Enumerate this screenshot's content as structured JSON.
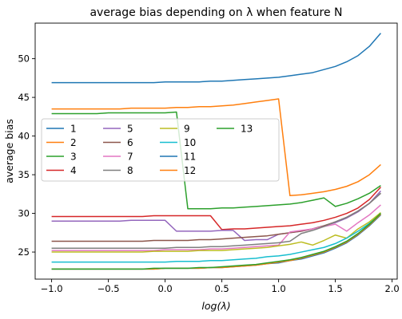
{
  "chart_data": {
    "type": "line",
    "title": "average bias depending on λ when feature N",
    "xlabel": "log(λ)",
    "ylabel": "average bias",
    "xlim": [
      -1.145,
      2.045
    ],
    "ylim": [
      21.5,
      54.6
    ],
    "xticks": [
      -1.0,
      -0.5,
      0.0,
      0.5,
      1.0,
      1.5,
      2.0
    ],
    "xtick_labels": [
      "−1.0",
      "−0.5",
      "0.0",
      "0.5",
      "1.0",
      "1.5",
      "2.0"
    ],
    "yticks": [
      25,
      30,
      35,
      40,
      45,
      50
    ],
    "ytick_labels": [
      "25",
      "30",
      "35",
      "40",
      "45",
      "50"
    ],
    "grid": false,
    "legend": {
      "placement": "center-left",
      "columns": 4
    },
    "x": [
      -1.0,
      -0.9,
      -0.8,
      -0.7,
      -0.6,
      -0.5,
      -0.4,
      -0.3,
      -0.2,
      -0.1,
      0.0,
      0.1,
      0.2,
      0.3,
      0.4,
      0.5,
      0.6,
      0.7,
      0.8,
      0.9,
      1.0,
      1.1,
      1.2,
      1.3,
      1.4,
      1.5,
      1.6,
      1.7,
      1.8,
      1.9
    ],
    "series": [
      {
        "name": "1",
        "color": "#1f77b4",
        "values": [
          46.9,
          46.9,
          46.9,
          46.9,
          46.9,
          46.9,
          46.9,
          46.9,
          46.9,
          46.9,
          47.0,
          47.0,
          47.0,
          47.0,
          47.1,
          47.1,
          47.2,
          47.3,
          47.4,
          47.5,
          47.6,
          47.8,
          48.0,
          48.2,
          48.6,
          49.0,
          49.6,
          50.4,
          51.6,
          53.3
        ]
      },
      {
        "name": "2",
        "color": "#ff7f0e",
        "values": [
          43.5,
          43.5,
          43.5,
          43.5,
          43.5,
          43.5,
          43.5,
          43.6,
          43.6,
          43.6,
          43.6,
          43.7,
          43.7,
          43.8,
          43.8,
          43.9,
          44.0,
          44.2,
          44.4,
          44.6,
          44.8,
          32.3,
          32.4,
          32.6,
          32.8,
          33.1,
          33.5,
          34.1,
          35.0,
          36.3
        ]
      },
      {
        "name": "3",
        "color": "#2ca02c",
        "values": [
          42.9,
          42.9,
          42.9,
          42.9,
          42.9,
          43.0,
          43.0,
          43.0,
          43.0,
          43.0,
          43.0,
          43.1,
          30.6,
          30.6,
          30.6,
          30.7,
          30.7,
          30.8,
          30.9,
          31.0,
          31.1,
          31.2,
          31.4,
          31.7,
          32.0,
          30.9,
          31.3,
          31.9,
          32.6,
          33.6
        ]
      },
      {
        "name": "4",
        "color": "#d62728",
        "values": [
          29.6,
          29.6,
          29.6,
          29.6,
          29.6,
          29.6,
          29.6,
          29.6,
          29.6,
          29.7,
          29.7,
          29.7,
          29.7,
          29.7,
          29.7,
          27.9,
          28.0,
          28.0,
          28.1,
          28.2,
          28.3,
          28.4,
          28.6,
          28.8,
          29.1,
          29.5,
          30.0,
          30.7,
          31.8,
          33.4
        ]
      },
      {
        "name": "5",
        "color": "#9467bd",
        "values": [
          29.0,
          29.0,
          29.0,
          29.0,
          29.0,
          29.0,
          29.0,
          29.1,
          29.1,
          29.1,
          29.1,
          27.7,
          27.7,
          27.7,
          27.7,
          27.8,
          27.8,
          26.5,
          26.6,
          26.6,
          27.3,
          27.5,
          27.7,
          28.0,
          28.4,
          28.8,
          29.4,
          30.2,
          31.3,
          32.9
        ]
      },
      {
        "name": "6",
        "color": "#8c564b",
        "values": [
          26.4,
          26.4,
          26.4,
          26.4,
          26.4,
          26.4,
          26.4,
          26.4,
          26.4,
          26.5,
          26.5,
          26.5,
          26.5,
          26.6,
          26.6,
          26.7,
          26.8,
          26.9,
          27.0,
          27.1,
          27.3,
          27.5,
          27.7,
          28.0,
          28.4,
          28.9,
          29.5,
          30.3,
          31.3,
          32.6
        ]
      },
      {
        "name": "7",
        "color": "#e377c2",
        "values": [
          25.2,
          25.2,
          25.2,
          25.2,
          25.2,
          25.2,
          25.2,
          25.2,
          25.2,
          25.2,
          25.3,
          25.3,
          25.3,
          25.3,
          25.4,
          25.4,
          25.5,
          25.6,
          25.7,
          25.8,
          25.9,
          27.6,
          27.8,
          28.0,
          28.3,
          28.6,
          27.7,
          28.8,
          29.8,
          31.1
        ]
      },
      {
        "name": "8",
        "color": "#7f7f7f",
        "values": [
          25.5,
          25.5,
          25.5,
          25.5,
          25.5,
          25.5,
          25.5,
          25.5,
          25.5,
          25.5,
          25.5,
          25.6,
          25.6,
          25.6,
          25.7,
          25.7,
          25.8,
          25.9,
          26.0,
          26.1,
          26.2,
          26.4,
          27.4,
          27.8,
          28.3,
          28.9,
          29.5,
          30.3,
          31.3,
          32.6
        ]
      },
      {
        "name": "9",
        "color": "#bcbd22",
        "values": [
          25.0,
          25.0,
          25.0,
          25.0,
          25.0,
          25.0,
          25.0,
          25.0,
          25.0,
          25.1,
          25.1,
          25.1,
          25.1,
          25.2,
          25.2,
          25.2,
          25.3,
          25.4,
          25.5,
          25.6,
          25.8,
          26.0,
          26.3,
          25.9,
          26.5,
          27.2,
          26.8,
          28.0,
          28.9,
          30.1
        ]
      },
      {
        "name": "10",
        "color": "#17becf",
        "values": [
          23.7,
          23.7,
          23.7,
          23.7,
          23.7,
          23.7,
          23.7,
          23.7,
          23.7,
          23.7,
          23.7,
          23.8,
          23.8,
          23.8,
          23.9,
          23.9,
          24.0,
          24.1,
          24.2,
          24.4,
          24.5,
          24.7,
          25.0,
          25.3,
          25.6,
          26.1,
          26.8,
          27.7,
          28.7,
          29.9
        ]
      },
      {
        "name": "11",
        "color": "#1f77b4",
        "values": [
          22.8,
          22.8,
          22.8,
          22.8,
          22.8,
          22.8,
          22.8,
          22.8,
          22.8,
          22.8,
          22.9,
          22.9,
          22.9,
          22.9,
          23.0,
          23.0,
          23.1,
          23.2,
          23.3,
          23.5,
          23.6,
          23.9,
          24.1,
          24.5,
          24.9,
          25.5,
          26.2,
          27.2,
          28.4,
          29.8
        ]
      },
      {
        "name": "12",
        "color": "#ff7f0e",
        "values": [
          22.8,
          22.8,
          22.8,
          22.8,
          22.8,
          22.8,
          22.8,
          22.8,
          22.8,
          22.8,
          22.9,
          22.9,
          22.9,
          22.9,
          23.0,
          23.0,
          23.1,
          23.2,
          23.3,
          23.5,
          23.7,
          23.9,
          24.2,
          24.6,
          25.0,
          25.6,
          26.3,
          27.3,
          28.5,
          29.9
        ]
      },
      {
        "name": "13",
        "color": "#2ca02c",
        "values": [
          22.8,
          22.8,
          22.8,
          22.8,
          22.8,
          22.8,
          22.8,
          22.8,
          22.8,
          22.9,
          22.9,
          22.9,
          22.9,
          23.0,
          23.0,
          23.1,
          23.2,
          23.3,
          23.4,
          23.6,
          23.8,
          24.0,
          24.3,
          24.7,
          25.1,
          25.7,
          26.4,
          27.4,
          28.6,
          30.0
        ]
      }
    ]
  }
}
